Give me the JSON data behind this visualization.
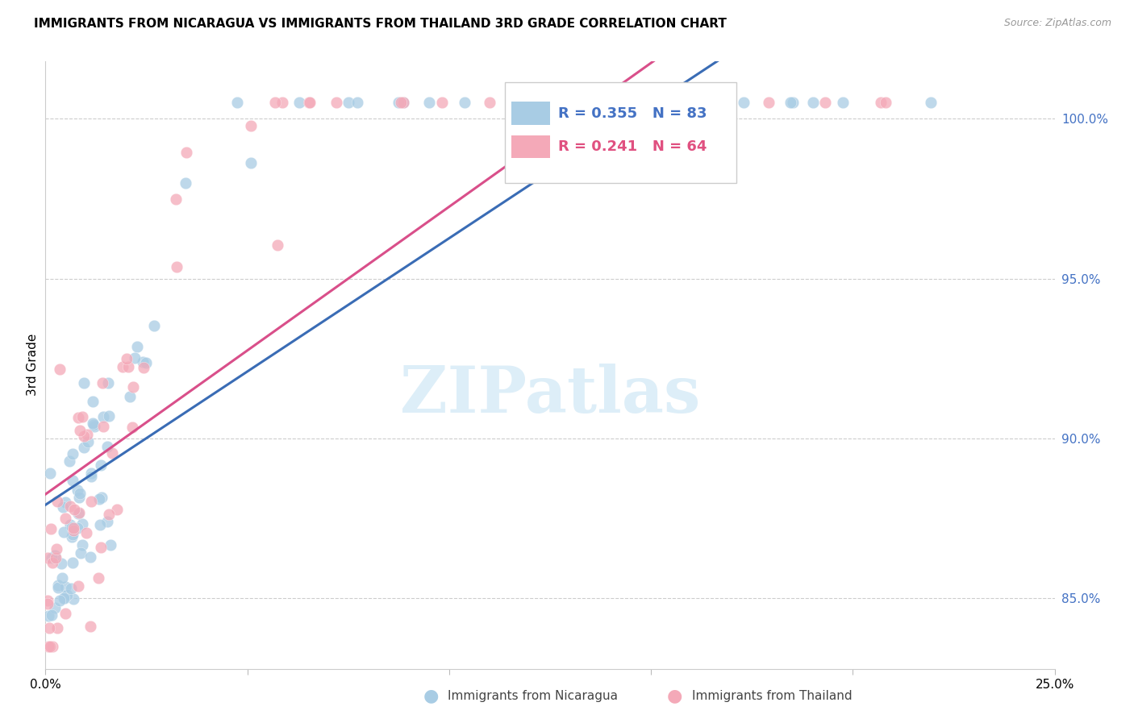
{
  "title": "IMMIGRANTS FROM NICARAGUA VS IMMIGRANTS FROM THAILAND 3RD GRADE CORRELATION CHART",
  "source": "Source: ZipAtlas.com",
  "ylabel": "3rd Grade",
  "ytick_labels": [
    "85.0%",
    "90.0%",
    "95.0%",
    "100.0%"
  ],
  "ytick_values": [
    0.85,
    0.9,
    0.95,
    1.0
  ],
  "xmin": 0.0,
  "xmax": 0.25,
  "ymin": 0.828,
  "ymax": 1.018,
  "legend_blue_r": "R = 0.355",
  "legend_blue_n": "N = 83",
  "legend_pink_r": "R = 0.241",
  "legend_pink_n": "N = 64",
  "blue_color": "#a8cce4",
  "pink_color": "#f4a9b8",
  "blue_line_color": "#3a6cb5",
  "pink_line_color": "#d94f8a",
  "blue_legend_color": "#4472c4",
  "pink_legend_color": "#e05080",
  "watermark_color": "#ddeef8"
}
